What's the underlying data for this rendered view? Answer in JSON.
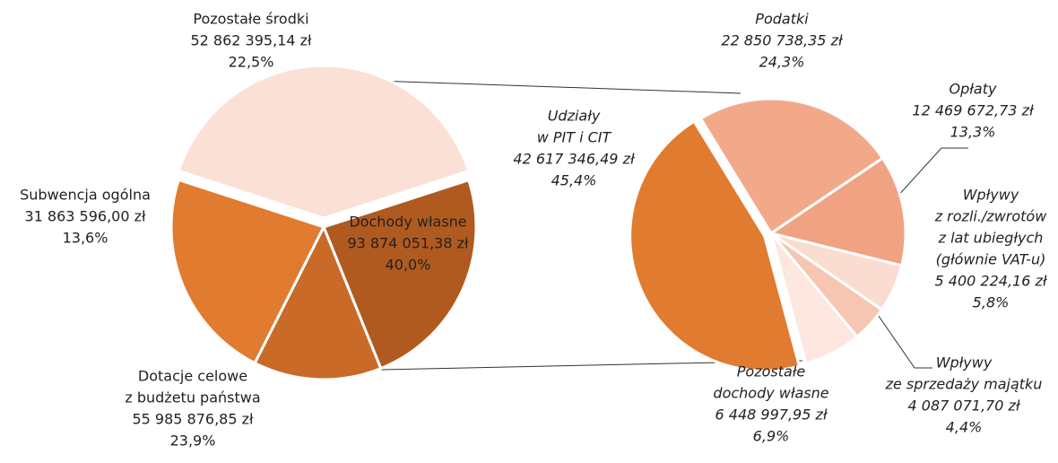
{
  "chart_data": [
    {
      "type": "pie",
      "labels": [
        [
          "Dochody własne"
        ],
        [
          "Dotacje celowe",
          "z budżetu państwa"
        ],
        [
          "Subwencja ogólna"
        ],
        [
          "Pozostałe środki"
        ]
      ],
      "values": [
        93874051.38,
        55985876.85,
        31863596.0,
        52862395.14
      ],
      "value_labels": [
        "93 874 051,38 zł",
        "55 985 876,85 zł",
        "31 863 596,00 zł",
        "52 862 395,14 zł"
      ],
      "percents": [
        40.0,
        23.9,
        13.6,
        22.5
      ],
      "percent_labels": [
        "40,0%",
        "23,9%",
        "13,6%",
        "22,5%"
      ],
      "colors": [
        "#fbe0d6",
        "#b05a20",
        "#c96a28",
        "#e07b2f"
      ]
    },
    {
      "type": "pie",
      "labels": [
        [
          "Udziały",
          "w PIT i CIT"
        ],
        [
          "Podatki"
        ],
        [
          "Opłaty"
        ],
        [
          "Wpływy",
          "z rozli./zwrotów",
          "z lat ubiegłych",
          "(głównie VAT-u)"
        ],
        [
          "Wpływy",
          "ze sprzedaży majątku"
        ],
        [
          "Pozostałe",
          "dochody własne"
        ]
      ],
      "values": [
        42617346.49,
        22850738.35,
        12469672.73,
        5400224.16,
        4087071.7,
        6448997.95
      ],
      "value_labels": [
        "42 617 346,49 zł",
        "22 850 738,35 zł",
        "12 469 672,73 zł",
        "5 400 224,16 zł",
        "4 087 071,70 zł",
        "6 448 997,95 zł"
      ],
      "percents": [
        45.4,
        24.3,
        13.3,
        5.8,
        4.4,
        6.9
      ],
      "percent_labels": [
        "45,4%",
        "24,3%",
        "13,3%",
        "5,8%",
        "4,4%",
        "6,9%"
      ],
      "colors": [
        "#e07b2f",
        "#f2a98a",
        "#f0a283",
        "#fbdcd0",
        "#f6c6b2",
        "#fde7de"
      ]
    }
  ]
}
